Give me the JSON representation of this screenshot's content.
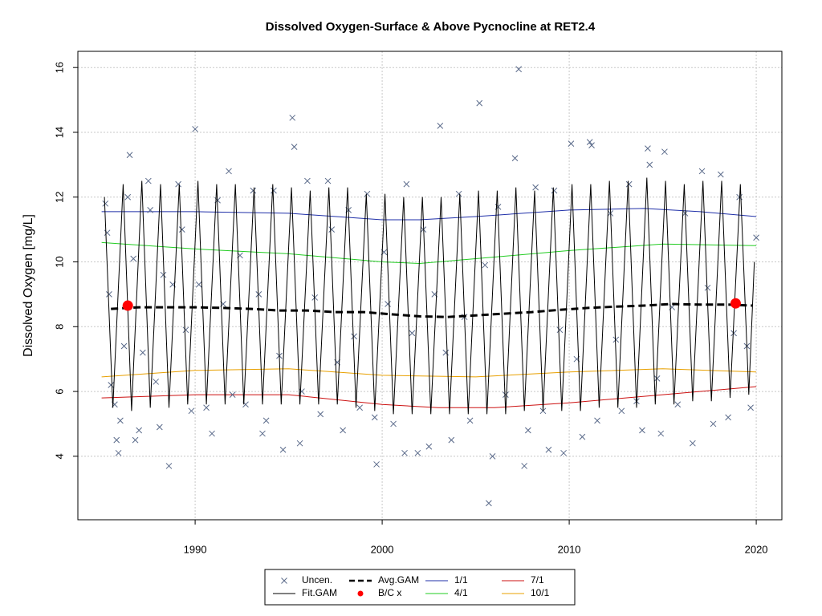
{
  "chart_data": {
    "type": "line",
    "title": "Dissolved Oxygen-Surface & Above Pycnocline at RET2.4",
    "ylabel": "Dissolved Oxygen [mg/L]",
    "xlim": [
      1983.73,
      2021.37
    ],
    "ylim": [
      2.04,
      16.5
    ],
    "xticks": [
      1990,
      2000,
      2010,
      2020
    ],
    "yticks": [
      4,
      6,
      8,
      10,
      12,
      14,
      16
    ],
    "grid": true,
    "legend": "bottom",
    "series": [
      {
        "name": "Uncen.",
        "color": "#5a6a8a",
        "style": "points",
        "x": [
          1985.2,
          1985.3,
          1985.4,
          1985.5,
          1985.7,
          1985.8,
          1985.9,
          1986.0,
          1986.2,
          1986.4,
          1986.5,
          1986.7,
          1986.8,
          1987.0,
          1987.2,
          1987.5,
          1987.6,
          1987.9,
          1988.1,
          1988.3,
          1988.6,
          1988.8,
          1989.1,
          1989.3,
          1989.5,
          1989.8,
          1990.0,
          1990.2,
          1990.6,
          1990.9,
          1991.2,
          1991.5,
          1991.8,
          1992.0,
          1992.4,
          1992.7,
          1993.1,
          1993.4,
          1993.6,
          1993.8,
          1994.2,
          1994.5,
          1994.7,
          1995.2,
          1995.3,
          1995.6,
          1995.7,
          1996.0,
          1996.4,
          1996.7,
          1997.1,
          1997.3,
          1997.6,
          1997.9,
          1998.2,
          1998.5,
          1998.8,
          1999.2,
          1999.6,
          1999.7,
          2000.1,
          2000.3,
          2000.6,
          2001.2,
          2001.3,
          2001.6,
          2001.9,
          2002.2,
          2002.5,
          2002.8,
          2003.1,
          2003.4,
          2003.7,
          2004.1,
          2004.4,
          2004.7,
          2005.2,
          2005.5,
          2005.7,
          2005.9,
          2006.2,
          2006.6,
          2007.1,
          2007.3,
          2007.6,
          2007.8,
          2008.2,
          2008.6,
          2008.9,
          2009.2,
          2009.5,
          2009.7,
          2010.1,
          2010.4,
          2010.7,
          2011.1,
          2011.2,
          2011.5,
          2012.2,
          2012.5,
          2012.8,
          2013.2,
          2013.6,
          2013.9,
          2014.2,
          2014.3,
          2014.7,
          2014.9,
          2015.1,
          2015.5,
          2015.8,
          2016.2,
          2016.6,
          2017.1,
          2017.4,
          2017.7,
          2018.1,
          2018.5,
          2018.8,
          2019.1,
          2019.5,
          2019.7,
          2020.0
        ],
        "values": [
          11.8,
          10.9,
          9.0,
          6.2,
          5.6,
          4.5,
          4.1,
          5.1,
          7.4,
          12.0,
          13.3,
          10.1,
          4.5,
          4.8,
          7.2,
          12.5,
          11.6,
          6.3,
          4.9,
          9.6,
          3.7,
          9.3,
          12.4,
          11.0,
          7.9,
          5.4,
          14.1,
          9.3,
          5.5,
          4.7,
          11.9,
          8.7,
          12.8,
          5.9,
          10.2,
          5.6,
          12.2,
          9.0,
          4.7,
          5.1,
          12.2,
          7.1,
          4.2,
          14.45,
          13.55,
          4.4,
          6.0,
          12.5,
          8.9,
          5.3,
          12.5,
          11.0,
          6.9,
          4.8,
          11.6,
          7.7,
          5.5,
          12.1,
          5.2,
          3.75,
          10.3,
          8.7,
          5.0,
          4.1,
          12.4,
          7.8,
          4.1,
          11.0,
          4.3,
          9.0,
          14.2,
          7.2,
          4.5,
          12.1,
          8.3,
          5.1,
          14.9,
          9.9,
          2.55,
          4.0,
          11.7,
          5.9,
          13.2,
          15.95,
          3.7,
          4.8,
          12.3,
          5.4,
          4.2,
          12.2,
          7.9,
          4.1,
          13.65,
          7.0,
          4.6,
          13.7,
          13.6,
          5.1,
          11.5,
          7.6,
          5.4,
          12.4,
          5.7,
          4.8,
          13.5,
          13.0,
          6.4,
          4.7,
          13.4,
          8.6,
          5.6,
          11.5,
          4.4,
          12.8,
          9.2,
          5.0,
          12.7,
          5.2,
          7.8,
          12.0,
          7.4,
          5.5,
          10.75
        ]
      },
      {
        "name": "Fit.GAM",
        "color": "#000000",
        "style": "line",
        "x": [
          1985.15,
          1985.6,
          1986.15,
          1986.6,
          1987.15,
          1987.6,
          1988.15,
          1988.6,
          1989.15,
          1989.6,
          1990.15,
          1990.6,
          1991.15,
          1991.6,
          1992.15,
          1992.6,
          1993.15,
          1993.6,
          1994.15,
          1994.6,
          1995.15,
          1995.6,
          1996.15,
          1996.6,
          1997.15,
          1997.6,
          1998.15,
          1998.6,
          1999.15,
          1999.6,
          2000.15,
          2000.6,
          2001.15,
          2001.6,
          2002.15,
          2002.6,
          2003.15,
          2003.6,
          2004.15,
          2004.6,
          2005.15,
          2005.6,
          2006.15,
          2006.6,
          2007.15,
          2007.6,
          2008.15,
          2008.6,
          2009.15,
          2009.6,
          2010.15,
          2010.6,
          2011.15,
          2011.6,
          2012.15,
          2012.6,
          2013.15,
          2013.6,
          2014.15,
          2014.6,
          2015.15,
          2015.6,
          2016.15,
          2016.6,
          2017.15,
          2017.6,
          2018.15,
          2018.6,
          2019.15,
          2019.6,
          2019.9
        ],
        "values": [
          12.0,
          5.5,
          12.4,
          5.4,
          12.5,
          5.5,
          12.4,
          5.5,
          12.4,
          5.6,
          12.5,
          5.6,
          12.4,
          5.6,
          12.4,
          5.6,
          12.3,
          5.6,
          12.4,
          5.6,
          12.3,
          5.6,
          12.2,
          5.6,
          12.3,
          5.6,
          12.3,
          5.5,
          12.1,
          5.4,
          12.1,
          5.3,
          12.0,
          5.3,
          12.0,
          5.3,
          12.0,
          5.3,
          12.1,
          5.3,
          12.2,
          5.3,
          12.2,
          5.3,
          12.3,
          5.4,
          12.2,
          5.4,
          12.3,
          5.4,
          12.4,
          5.4,
          12.4,
          5.5,
          12.5,
          5.5,
          12.5,
          5.5,
          12.6,
          5.6,
          12.5,
          5.6,
          12.4,
          5.7,
          12.5,
          5.7,
          12.5,
          5.8,
          12.4,
          5.9,
          10.0
        ]
      },
      {
        "name": "Avg.GAM",
        "color": "#000000",
        "style": "dashed",
        "x": [
          1985.5,
          1987,
          1988.5,
          1990,
          1991.5,
          1993,
          1994.5,
          1996,
          1997.5,
          1999,
          2000.5,
          2002,
          2003.5,
          2005,
          2006.5,
          2008,
          2009.5,
          2011,
          2012.5,
          2014,
          2015.5,
          2017,
          2018.5,
          2019.8
        ],
        "values": [
          8.55,
          8.6,
          8.6,
          8.6,
          8.58,
          8.55,
          8.5,
          8.5,
          8.45,
          8.45,
          8.38,
          8.32,
          8.3,
          8.35,
          8.4,
          8.45,
          8.52,
          8.58,
          8.62,
          8.65,
          8.7,
          8.68,
          8.68,
          8.65
        ]
      },
      {
        "name": "B/C x",
        "color": "#ff0000",
        "style": "dots",
        "x": [
          1986.4,
          2018.9
        ],
        "values": [
          8.65,
          8.72
        ]
      },
      {
        "name": "1/1",
        "color": "#1f2fa8",
        "style": "line",
        "x": [
          1985,
          1990,
          1995,
          2000,
          2002,
          2005,
          2010,
          2014,
          2017,
          2020
        ],
        "values": [
          11.55,
          11.55,
          11.5,
          11.3,
          11.3,
          11.4,
          11.6,
          11.65,
          11.55,
          11.4
        ]
      },
      {
        "name": "4/1",
        "color": "#22cc22",
        "style": "line",
        "x": [
          1985,
          1990,
          1995,
          2000,
          2002,
          2005,
          2010,
          2015,
          2020
        ],
        "values": [
          10.6,
          10.4,
          10.25,
          10.0,
          9.95,
          10.1,
          10.35,
          10.55,
          10.5
        ]
      },
      {
        "name": "7/1",
        "color": "#cc1111",
        "style": "line",
        "x": [
          1985,
          1990,
          1995,
          2000,
          2003,
          2006,
          2010,
          2015,
          2020
        ],
        "values": [
          5.8,
          5.9,
          5.9,
          5.6,
          5.5,
          5.5,
          5.65,
          5.9,
          6.15
        ]
      },
      {
        "name": "10/1",
        "color": "#e8a000",
        "style": "line",
        "x": [
          1985,
          1990,
          1995,
          2000,
          2005,
          2010,
          2015,
          2020
        ],
        "values": [
          6.45,
          6.65,
          6.7,
          6.5,
          6.45,
          6.6,
          6.7,
          6.6
        ]
      }
    ]
  }
}
